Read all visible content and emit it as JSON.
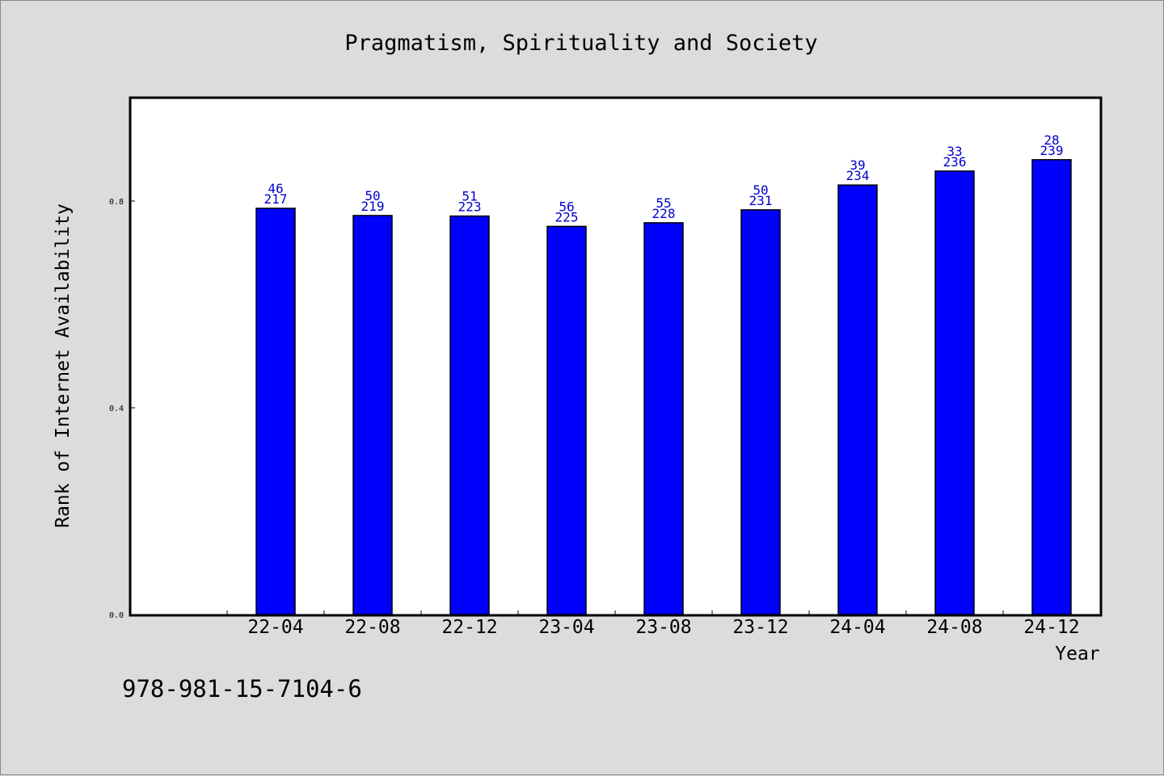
{
  "chart_data": {
    "type": "bar",
    "title": "Pragmatism, Spirituality and Society",
    "xlabel": "Year",
    "ylabel": "Rank of Internet Availability",
    "categories": [
      "22-04",
      "22-08",
      "22-12",
      "23-04",
      "23-08",
      "23-12",
      "24-04",
      "24-08",
      "24-12"
    ],
    "values": [
      0.786,
      0.772,
      0.771,
      0.751,
      0.758,
      0.783,
      0.831,
      0.858,
      0.88
    ],
    "label_top": [
      "46",
      "50",
      "51",
      "56",
      "55",
      "50",
      "39",
      "33",
      "28"
    ],
    "label_bottom": [
      "217",
      "219",
      "223",
      "225",
      "228",
      "231",
      "234",
      "236",
      "239"
    ],
    "yticks": [
      "0.0",
      "0.4",
      "0.8"
    ],
    "ylim": [
      0,
      1.0
    ],
    "grid": false,
    "bar_color": "#0000ff",
    "label_color": "#0000cc"
  },
  "footer": {
    "isbn": "978-981-15-7104-6"
  }
}
